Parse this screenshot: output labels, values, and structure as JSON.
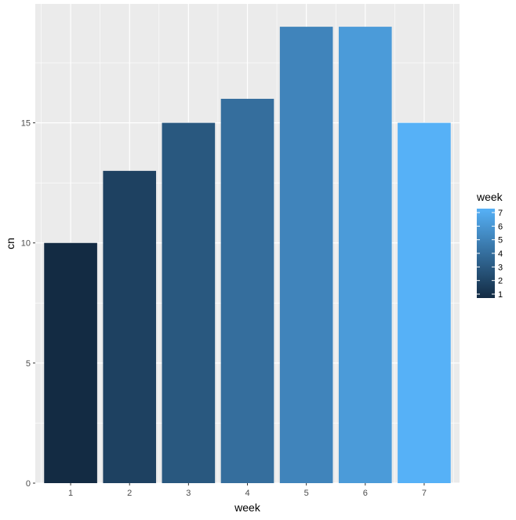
{
  "chart_data": {
    "type": "bar",
    "categories": [
      "1",
      "2",
      "3",
      "4",
      "5",
      "6",
      "7"
    ],
    "values": [
      10,
      13,
      15,
      16,
      19,
      19,
      15
    ],
    "title": "",
    "xlabel": "week",
    "ylabel": "cn",
    "ylim": [
      0,
      19.95
    ],
    "xlim": [
      0.4,
      7.6
    ],
    "yticks": [
      0,
      5,
      10,
      15
    ],
    "grid": true,
    "panel_background": "#ebebeb",
    "grid_color": "#ffffff",
    "legend": {
      "title": "week",
      "position": "right",
      "type": "colorbar",
      "range": [
        1,
        7
      ],
      "ticks": [
        1,
        2,
        3,
        4,
        5,
        6,
        7
      ],
      "low_color": "#132b43",
      "high_color": "#56b1f7"
    }
  }
}
